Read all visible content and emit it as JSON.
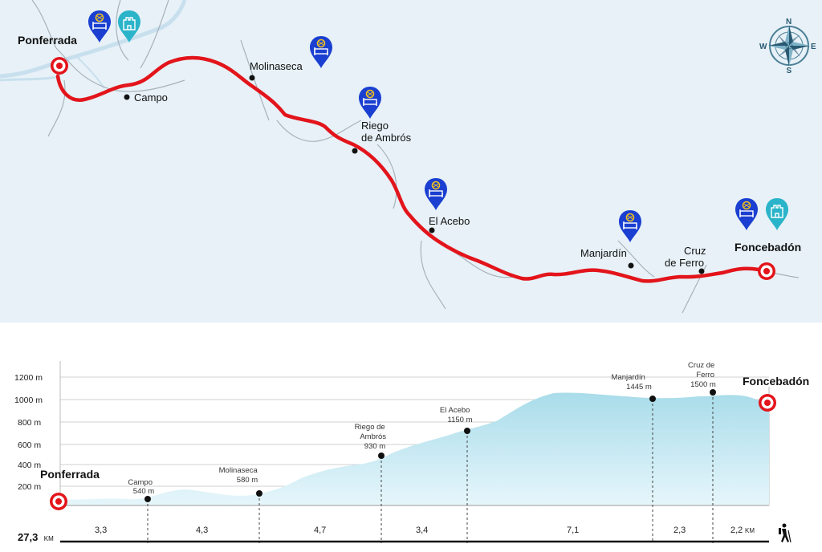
{
  "map": {
    "start_label": "Ponferrada",
    "end_label": "Foncebadón",
    "places": [
      {
        "id": "campo",
        "lines": [
          "Campo"
        ]
      },
      {
        "id": "molinaseca",
        "lines": [
          "Molinaseca"
        ]
      },
      {
        "id": "riego",
        "lines": [
          "Riego",
          "de Ambrós"
        ]
      },
      {
        "id": "acebo",
        "lines": [
          "El Acebo"
        ]
      },
      {
        "id": "manjardin",
        "lines": [
          "Manjardín"
        ]
      },
      {
        "id": "cruz",
        "lines": [
          "Cruz",
          "de Ferro"
        ]
      }
    ],
    "compass": {
      "n": "N",
      "s": "S",
      "e": "E",
      "w": "W"
    },
    "colors": {
      "route": "#e3141b",
      "lodging_pin": "#1a3fd1",
      "monument_pin": "#2bb4c9"
    }
  },
  "profile": {
    "y_ticks": [
      "1200 m",
      "1000 m",
      "800 m",
      "600 m",
      "400 m",
      "200 m"
    ],
    "start_label": "Ponferrada",
    "end_label": "Foncebadón",
    "points": [
      {
        "id": "campo",
        "lines": [
          "Campo",
          "540 m"
        ]
      },
      {
        "id": "molinaseca",
        "lines": [
          "Molinaseca",
          "580 m"
        ]
      },
      {
        "id": "riego",
        "lines": [
          "Riego de",
          "Ambrós",
          "930 m"
        ]
      },
      {
        "id": "acebo",
        "lines": [
          "El Acebo",
          "1150 m"
        ]
      },
      {
        "id": "manjardin",
        "lines": [
          "Manjardín",
          "1445 m"
        ]
      },
      {
        "id": "cruz",
        "lines": [
          "Cruz de",
          "Ferro",
          "1500 m"
        ]
      }
    ],
    "segments": [
      "3,3",
      "4,3",
      "4,7",
      "3,4",
      "7,1",
      "2,3",
      "2,2"
    ],
    "segment_unit": "KM",
    "total": "27,3",
    "total_unit": "KM",
    "colors": {
      "fill_top": "#a9dcea",
      "fill_bottom": "#e6f6fb"
    }
  }
}
